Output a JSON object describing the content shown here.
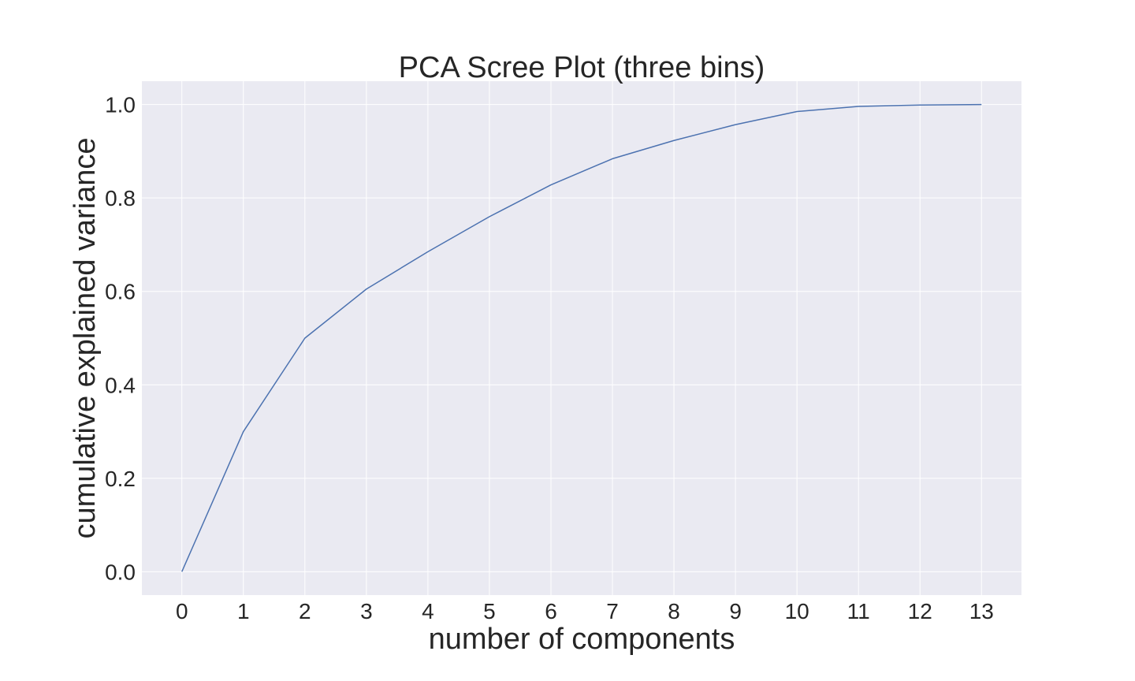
{
  "chart_data": {
    "type": "line",
    "title": "PCA Scree Plot (three bins)",
    "xlabel": "number of components",
    "ylabel": "cumulative explained variance",
    "x": [
      0,
      1,
      2,
      3,
      4,
      5,
      6,
      7,
      8,
      9,
      10,
      11,
      12,
      13
    ],
    "series": [
      {
        "values": [
          0.0,
          0.3,
          0.5,
          0.605,
          0.685,
          0.76,
          0.828,
          0.884,
          0.923,
          0.957,
          0.985,
          0.996,
          0.999,
          1.0
        ],
        "color": "#4c72b0"
      }
    ],
    "xticks": [
      0,
      1,
      2,
      3,
      4,
      5,
      6,
      7,
      8,
      9,
      10,
      11,
      12,
      13
    ],
    "xtick_labels": [
      "0",
      "1",
      "2",
      "3",
      "4",
      "5",
      "6",
      "7",
      "8",
      "9",
      "10",
      "11",
      "12",
      "13"
    ],
    "yticks": [
      0.0,
      0.2,
      0.4,
      0.6,
      0.8,
      1.0
    ],
    "ytick_labels": [
      "0.0",
      "0.2",
      "0.4",
      "0.6",
      "0.8",
      "1.0"
    ],
    "xlim": [
      -0.65,
      13.65
    ],
    "ylim": [
      -0.05,
      1.05
    ],
    "grid": true,
    "legend": "none",
    "background_color": "#eaeaf2",
    "grid_color": "#ffffff"
  }
}
